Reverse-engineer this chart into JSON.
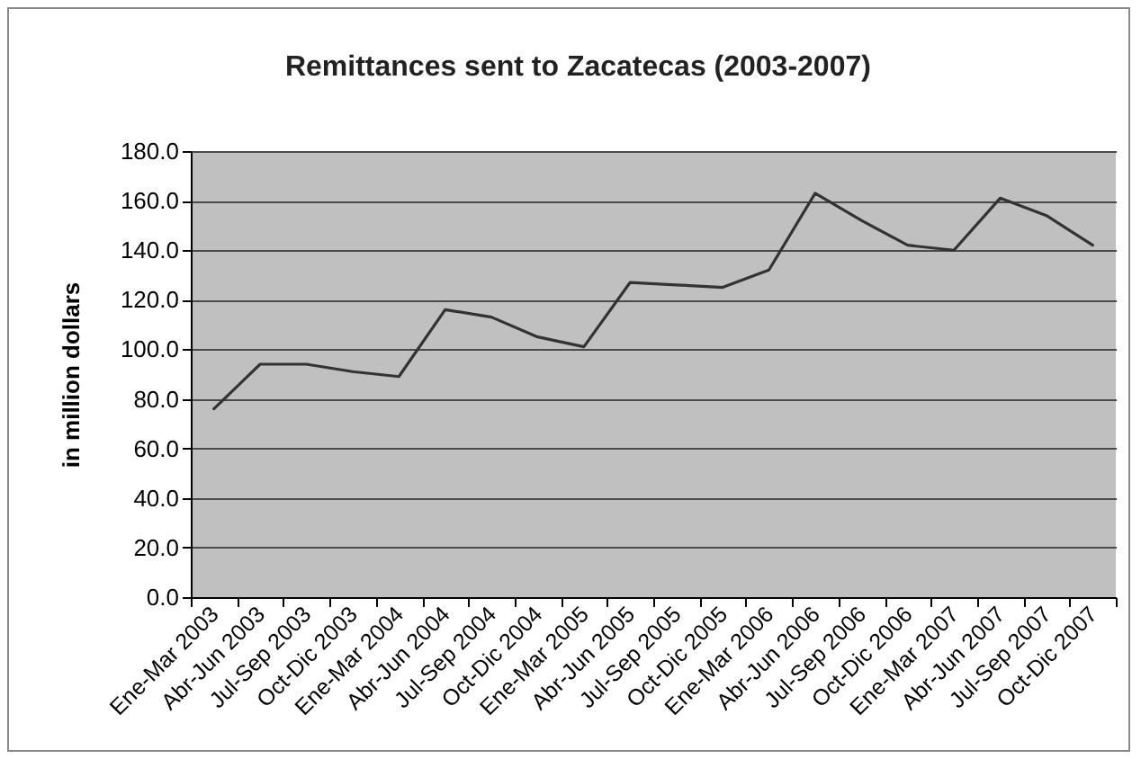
{
  "chart_data": {
    "type": "line",
    "title": "Remittances sent to Zacatecas (2003-2007)",
    "ylabel": "in million dollars",
    "categories": [
      "Ene-Mar 2003",
      "Abr-Jun 2003",
      "Jul-Sep 2003",
      "Oct-Dic 2003",
      "Ene-Mar 2004",
      "Abr-Jun 2004",
      "Jul-Sep 2004",
      "Oct-Dic 2004",
      "Ene-Mar 2005",
      "Abr-Jun 2005",
      "Jul-Sep 2005",
      "Oct-Dic 2005",
      "Ene-Mar 2006",
      "Abr-Jun 2006",
      "Jul-Sep 2006",
      "Oct-Dic 2006",
      "Ene-Mar 2007",
      "Abr-Jun 2007",
      "Jul-Sep 2007",
      "Oct-Dic 2007"
    ],
    "series": [
      {
        "color": "#333333",
        "values": [
          76,
          94,
          94,
          91,
          89,
          116,
          113,
          105,
          101,
          127,
          126,
          125,
          132,
          163,
          152,
          142,
          140,
          161,
          154,
          142
        ]
      }
    ],
    "ylim": [
      0,
      180
    ],
    "yticks": [
      {
        "value": 0,
        "label": "0.0"
      },
      {
        "value": 20,
        "label": "20.0"
      },
      {
        "value": 40,
        "label": "40.0"
      },
      {
        "value": 60,
        "label": "60.0"
      },
      {
        "value": 80,
        "label": "80.0"
      },
      {
        "value": 100,
        "label": "100.0"
      },
      {
        "value": 120,
        "label": "120.0"
      },
      {
        "value": 140,
        "label": "140.0"
      },
      {
        "value": 160,
        "label": "160.0"
      },
      {
        "value": 180,
        "label": "180.0"
      }
    ],
    "grid": "y",
    "line_style": "solid"
  }
}
